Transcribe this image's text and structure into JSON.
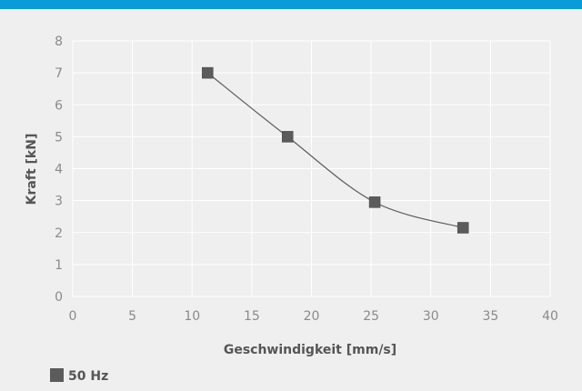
{
  "colors": {
    "accent_bar": "#0a9cd9",
    "background": "#efefef",
    "grid": "#ffffff",
    "series": "#5b5b5b",
    "tick_text": "#8a8a8a",
    "title_text": "#555555"
  },
  "chart_data": {
    "type": "scatter",
    "title": "",
    "xlabel": "Geschwindigkeit [mm/s]",
    "ylabel": "Kraft [kN]",
    "xlim": [
      0,
      40
    ],
    "ylim": [
      0,
      8
    ],
    "xticks": [
      "0",
      "5",
      "10",
      "15",
      "20",
      "25",
      "30",
      "35",
      "40"
    ],
    "yticks": [
      "0",
      "1",
      "2",
      "3",
      "4",
      "5",
      "6",
      "7",
      "8"
    ],
    "grid": true,
    "legend": "bottom-left",
    "series": [
      {
        "name": "50 Hz",
        "marker": "square",
        "line": "smooth",
        "points": [
          {
            "x": 11.3,
            "y": 7.0
          },
          {
            "x": 18.0,
            "y": 5.0
          },
          {
            "x": 25.3,
            "y": 2.95
          },
          {
            "x": 32.7,
            "y": 2.15
          }
        ]
      }
    ]
  }
}
